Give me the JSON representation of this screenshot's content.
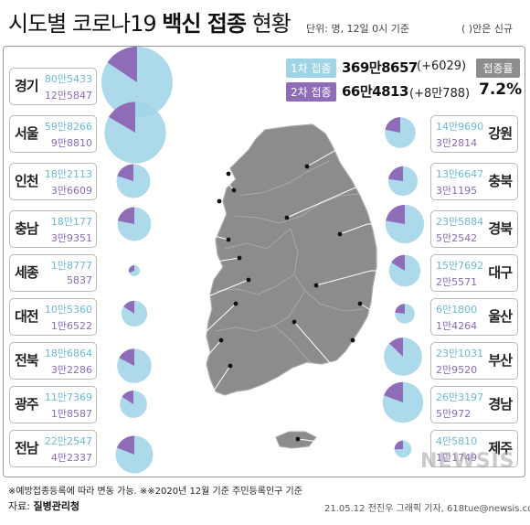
{
  "title": {
    "prefix": "시도별 코로나19 ",
    "bold": "백신 접종",
    "suffix": " 현황"
  },
  "unit_note": "단위: 명, 12일 0시 기준",
  "paren_note": "( )안은 신규",
  "summary": {
    "first": {
      "label": "1차 접종",
      "total": "369만8657",
      "delta": "(+6029)"
    },
    "second": {
      "label": "2차 접종",
      "total": "66만4813",
      "delta": "(+8만788)"
    },
    "rate_label": "접종률",
    "rate_value": "7.2%"
  },
  "colors": {
    "first": "#9fd3e6",
    "first_text": "#6ab8d6",
    "second": "#8e6cb8",
    "map": "#8c8c8c"
  },
  "chart_data": {
    "type": "pie",
    "title": "시도별 코로나19 백신 접종 현황",
    "series_names": [
      "1차 접종",
      "2차 접종"
    ],
    "regions": [
      {
        "name": "경기",
        "first_label": "80만5433",
        "second_label": "12만5847",
        "first": 805433,
        "second": 125847
      },
      {
        "name": "서울",
        "first_label": "59만8266",
        "second_label": "9만8810",
        "first": 598266,
        "second": 98810
      },
      {
        "name": "인천",
        "first_label": "18만2113",
        "second_label": "3만6609",
        "first": 182113,
        "second": 36609
      },
      {
        "name": "충남",
        "first_label": "18만177",
        "second_label": "3만9351",
        "first": 180177,
        "second": 39351
      },
      {
        "name": "세종",
        "first_label": "1만8777",
        "second_label": "5837",
        "first": 18777,
        "second": 5837
      },
      {
        "name": "대전",
        "first_label": "10만5360",
        "second_label": "1만6522",
        "first": 105360,
        "second": 16522
      },
      {
        "name": "전북",
        "first_label": "18만6864",
        "second_label": "3만2286",
        "first": 186864,
        "second": 32286
      },
      {
        "name": "광주",
        "first_label": "11만7369",
        "second_label": "1만8587",
        "first": 117369,
        "second": 18587
      },
      {
        "name": "전남",
        "first_label": "22만2547",
        "second_label": "4만2337",
        "first": 222547,
        "second": 42337
      },
      {
        "name": "강원",
        "first_label": "14만9690",
        "second_label": "3만2814",
        "first": 149690,
        "second": 32814
      },
      {
        "name": "충북",
        "first_label": "13만6647",
        "second_label": "3만1195",
        "first": 136647,
        "second": 31195
      },
      {
        "name": "경북",
        "first_label": "23만5884",
        "second_label": "5만2542",
        "first": 235884,
        "second": 52542
      },
      {
        "name": "대구",
        "first_label": "15만7692",
        "second_label": "2만5571",
        "first": 157692,
        "second": 25571
      },
      {
        "name": "울산",
        "first_label": "6만1800",
        "second_label": "1만4264",
        "first": 61800,
        "second": 14264
      },
      {
        "name": "부산",
        "first_label": "23만1031",
        "second_label": "2만9520",
        "first": 231031,
        "second": 29520
      },
      {
        "name": "경남",
        "first_label": "26만3197",
        "second_label": "5만972",
        "first": 263197,
        "second": 50972
      },
      {
        "name": "제주",
        "first_label": "4만5810",
        "second_label": "1만1749",
        "first": 45810,
        "second": 11749
      }
    ]
  },
  "footnote": "※예방접종등록에 따라 변동 가능. ※※2020년 12월 기준 주민등록인구 기준",
  "source": {
    "label": "자료: ",
    "name": "질병관리청"
  },
  "credit": "21.05.12 전진우 그래픽 기자, 618tue@newsis.com",
  "watermark": "NEWSIS"
}
